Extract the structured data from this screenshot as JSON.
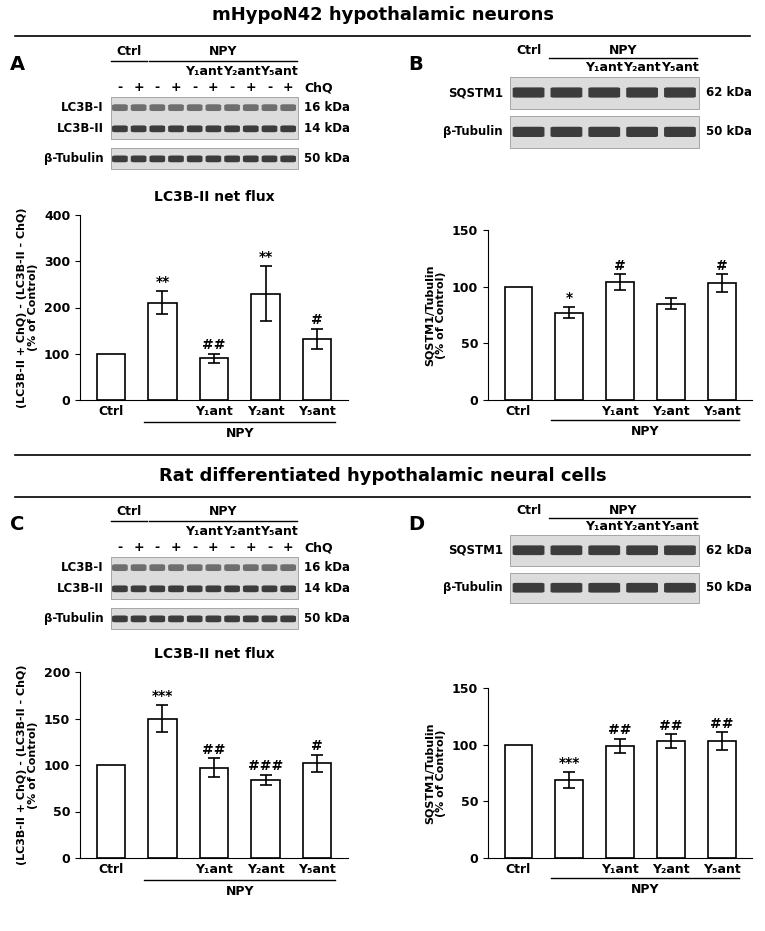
{
  "sections": [
    {
      "title": "mHypoN42 hypothalamic neurons",
      "panels": [
        "A",
        "B"
      ]
    },
    {
      "title": "Rat differentiated hypothalamic neural cells",
      "panels": [
        "C",
        "D"
      ]
    }
  ],
  "chart_data": [
    {
      "type": "bar",
      "panel": "A",
      "title": "LC3B-II net flux",
      "ylabel": "(LC3B-II + ChQ) - (LC3B-II - ChQ)\n(% of Control)",
      "categories": [
        "Ctrl",
        null,
        "Y₁ant",
        "Y₂ant",
        "Y₅ant"
      ],
      "x_group": {
        "label": "NPY",
        "from": 1,
        "to": 4
      },
      "values": [
        100,
        210,
        90,
        230,
        132
      ],
      "errors": [
        null,
        25,
        10,
        60,
        22
      ],
      "significance": [
        null,
        "**",
        "##",
        "**",
        "#"
      ],
      "ylim": [
        0,
        400
      ],
      "yticks": [
        0,
        100,
        200,
        300,
        400
      ],
      "color": "#ffffff",
      "blot": {
        "lanes": 10,
        "header": [
          {
            "label": "Ctrl",
            "from": 0,
            "to": 1
          },
          {
            "label": "NPY",
            "from": 2,
            "to": 9
          }
        ],
        "subheader": [
          {
            "label": "Y₁ant",
            "from": 4,
            "to": 5
          },
          {
            "label": "Y₂ant",
            "from": 6,
            "to": 7
          },
          {
            "label": "Y₅ant",
            "from": 8,
            "to": 9
          }
        ],
        "treatment_row": {
          "label": "ChQ",
          "marks": [
            "-",
            "+",
            "-",
            "+",
            "-",
            "+",
            "-",
            "+",
            "-",
            "+"
          ]
        },
        "gels": [
          {
            "bands": [
              {
                "label": "LC3B-I",
                "size": "16 kDa"
              },
              {
                "label": "LC3B-II",
                "size": "14 kDa"
              }
            ]
          },
          {
            "bands": [
              {
                "label": "β-Tubulin",
                "size": "50 kDa"
              }
            ]
          }
        ]
      }
    },
    {
      "type": "bar",
      "panel": "B",
      "ylabel": "SQSTM1/Tubulin\n(% of Control)",
      "categories": [
        "Ctrl",
        null,
        "Y₁ant",
        "Y₂ant",
        "Y₅ant"
      ],
      "x_group": {
        "label": "NPY",
        "from": 1,
        "to": 4
      },
      "values": [
        100,
        77,
        104,
        85,
        103
      ],
      "errors": [
        null,
        5,
        7,
        5,
        8
      ],
      "significance": [
        null,
        "*",
        "#",
        null,
        "#"
      ],
      "ylim": [
        0,
        150
      ],
      "yticks": [
        0,
        50,
        100,
        150
      ],
      "color": "#ffffff",
      "blot": {
        "lanes": 5,
        "header": [
          {
            "label": "Ctrl",
            "from": 0,
            "to": 0
          },
          {
            "label": "NPY",
            "from": 1,
            "to": 4
          }
        ],
        "subheader": [
          {
            "label": "Y₁ant",
            "from": 2,
            "to": 2
          },
          {
            "label": "Y₂ant",
            "from": 3,
            "to": 3
          },
          {
            "label": "Y₅ant",
            "from": 4,
            "to": 4
          }
        ],
        "gels": [
          {
            "bands": [
              {
                "label": "SQSTM1",
                "size": "62 kDa"
              }
            ]
          },
          {
            "bands": [
              {
                "label": "β-Tubulin",
                "size": "50 kDa"
              }
            ]
          }
        ]
      }
    },
    {
      "type": "bar",
      "panel": "C",
      "title": "LC3B-II net flux",
      "ylabel": "(LC3B-II + ChQ) - (LC3B-II - ChQ)\n(% of Control)",
      "categories": [
        "Ctrl",
        null,
        "Y₁ant",
        "Y₂ant",
        "Y₅ant"
      ],
      "x_group": {
        "label": "NPY",
        "from": 1,
        "to": 4
      },
      "values": [
        100,
        150,
        97,
        84,
        102
      ],
      "errors": [
        null,
        15,
        10,
        5,
        9
      ],
      "significance": [
        null,
        "***",
        "##",
        "###",
        "#"
      ],
      "ylim": [
        0,
        200
      ],
      "yticks": [
        0,
        50,
        100,
        150,
        200
      ],
      "color": "#ffffff",
      "blot": {
        "lanes": 10,
        "header": [
          {
            "label": "Ctrl",
            "from": 0,
            "to": 1
          },
          {
            "label": "NPY",
            "from": 2,
            "to": 9
          }
        ],
        "subheader": [
          {
            "label": "Y₁ant",
            "from": 4,
            "to": 5
          },
          {
            "label": "Y₂ant",
            "from": 6,
            "to": 7
          },
          {
            "label": "Y₅ant",
            "from": 8,
            "to": 9
          }
        ],
        "treatment_row": {
          "label": "ChQ",
          "marks": [
            "-",
            "+",
            "-",
            "+",
            "-",
            "+",
            "-",
            "+",
            "-",
            "+"
          ]
        },
        "gels": [
          {
            "bands": [
              {
                "label": "LC3B-I",
                "size": "16 kDa"
              },
              {
                "label": "LC3B-II",
                "size": "14 kDa"
              }
            ]
          },
          {
            "bands": [
              {
                "label": "β-Tubulin",
                "size": "50 kDa"
              }
            ]
          }
        ]
      }
    },
    {
      "type": "bar",
      "panel": "D",
      "ylabel": "SQSTM1/Tubulin\n(% of Control)",
      "categories": [
        "Ctrl",
        null,
        "Y₁ant",
        "Y₂ant",
        "Y₅ant"
      ],
      "x_group": {
        "label": "NPY",
        "from": 1,
        "to": 4
      },
      "values": [
        100,
        69,
        99,
        103,
        103
      ],
      "errors": [
        null,
        7,
        6,
        6,
        8
      ],
      "significance": [
        null,
        "***",
        "##",
        "##",
        "##"
      ],
      "ylim": [
        0,
        150
      ],
      "yticks": [
        0,
        50,
        100,
        150
      ],
      "color": "#ffffff",
      "blot": {
        "lanes": 5,
        "header": [
          {
            "label": "Ctrl",
            "from": 0,
            "to": 0
          },
          {
            "label": "NPY",
            "from": 1,
            "to": 4
          }
        ],
        "subheader": [
          {
            "label": "Y₁ant",
            "from": 2,
            "to": 2
          },
          {
            "label": "Y₂ant",
            "from": 3,
            "to": 3
          },
          {
            "label": "Y₅ant",
            "from": 4,
            "to": 4
          }
        ],
        "gels": [
          {
            "bands": [
              {
                "label": "SQSTM1",
                "size": "62 kDa"
              }
            ]
          },
          {
            "bands": [
              {
                "label": "β-Tubulin",
                "size": "50 kDa"
              }
            ]
          }
        ]
      }
    }
  ]
}
